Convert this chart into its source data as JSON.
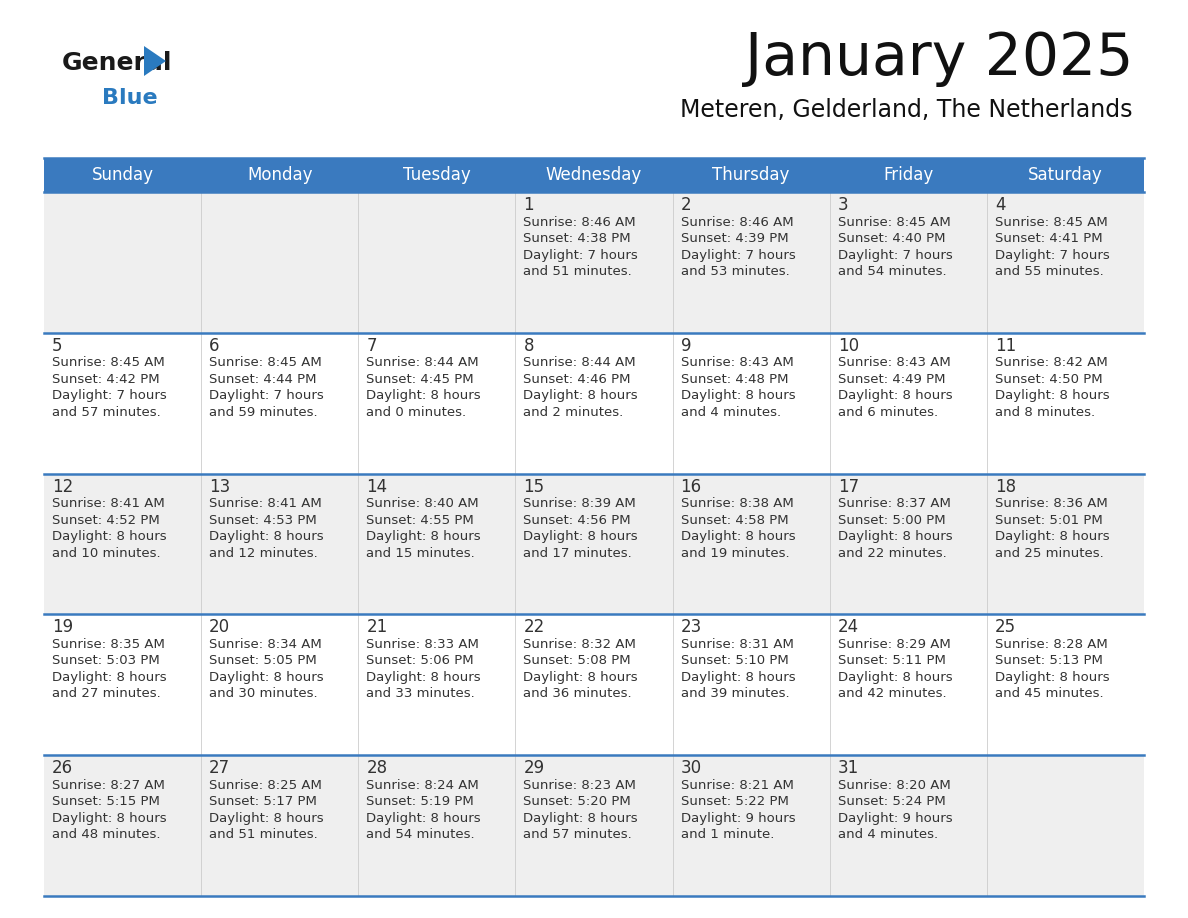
{
  "title": "January 2025",
  "subtitle": "Meteren, Gelderland, The Netherlands",
  "header_bg_color": "#3a7abf",
  "header_text_color": "#ffffff",
  "cell_bg_odd": "#efefef",
  "cell_bg_even": "#ffffff",
  "row_separator_color": "#3a7abf",
  "text_color": "#333333",
  "days_of_week": [
    "Sunday",
    "Monday",
    "Tuesday",
    "Wednesday",
    "Thursday",
    "Friday",
    "Saturday"
  ],
  "calendar": [
    [
      {
        "day": "",
        "sunrise": "",
        "sunset": "",
        "daylight_h": "",
        "daylight_m": "",
        "singular": false
      },
      {
        "day": "",
        "sunrise": "",
        "sunset": "",
        "daylight_h": "",
        "daylight_m": "",
        "singular": false
      },
      {
        "day": "",
        "sunrise": "",
        "sunset": "",
        "daylight_h": "",
        "daylight_m": "",
        "singular": false
      },
      {
        "day": "1",
        "sunrise": "8:46 AM",
        "sunset": "4:38 PM",
        "daylight_h": "7",
        "daylight_m": "51",
        "singular": false
      },
      {
        "day": "2",
        "sunrise": "8:46 AM",
        "sunset": "4:39 PM",
        "daylight_h": "7",
        "daylight_m": "53",
        "singular": false
      },
      {
        "day": "3",
        "sunrise": "8:45 AM",
        "sunset": "4:40 PM",
        "daylight_h": "7",
        "daylight_m": "54",
        "singular": false
      },
      {
        "day": "4",
        "sunrise": "8:45 AM",
        "sunset": "4:41 PM",
        "daylight_h": "7",
        "daylight_m": "55",
        "singular": false
      }
    ],
    [
      {
        "day": "5",
        "sunrise": "8:45 AM",
        "sunset": "4:42 PM",
        "daylight_h": "7",
        "daylight_m": "57",
        "singular": false
      },
      {
        "day": "6",
        "sunrise": "8:45 AM",
        "sunset": "4:44 PM",
        "daylight_h": "7",
        "daylight_m": "59",
        "singular": false
      },
      {
        "day": "7",
        "sunrise": "8:44 AM",
        "sunset": "4:45 PM",
        "daylight_h": "8",
        "daylight_m": "0",
        "singular": false
      },
      {
        "day": "8",
        "sunrise": "8:44 AM",
        "sunset": "4:46 PM",
        "daylight_h": "8",
        "daylight_m": "2",
        "singular": false
      },
      {
        "day": "9",
        "sunrise": "8:43 AM",
        "sunset": "4:48 PM",
        "daylight_h": "8",
        "daylight_m": "4",
        "singular": false
      },
      {
        "day": "10",
        "sunrise": "8:43 AM",
        "sunset": "4:49 PM",
        "daylight_h": "8",
        "daylight_m": "6",
        "singular": false
      },
      {
        "day": "11",
        "sunrise": "8:42 AM",
        "sunset": "4:50 PM",
        "daylight_h": "8",
        "daylight_m": "8",
        "singular": false
      }
    ],
    [
      {
        "day": "12",
        "sunrise": "8:41 AM",
        "sunset": "4:52 PM",
        "daylight_h": "8",
        "daylight_m": "10",
        "singular": false
      },
      {
        "day": "13",
        "sunrise": "8:41 AM",
        "sunset": "4:53 PM",
        "daylight_h": "8",
        "daylight_m": "12",
        "singular": false
      },
      {
        "day": "14",
        "sunrise": "8:40 AM",
        "sunset": "4:55 PM",
        "daylight_h": "8",
        "daylight_m": "15",
        "singular": false
      },
      {
        "day": "15",
        "sunrise": "8:39 AM",
        "sunset": "4:56 PM",
        "daylight_h": "8",
        "daylight_m": "17",
        "singular": false
      },
      {
        "day": "16",
        "sunrise": "8:38 AM",
        "sunset": "4:58 PM",
        "daylight_h": "8",
        "daylight_m": "19",
        "singular": false
      },
      {
        "day": "17",
        "sunrise": "8:37 AM",
        "sunset": "5:00 PM",
        "daylight_h": "8",
        "daylight_m": "22",
        "singular": false
      },
      {
        "day": "18",
        "sunrise": "8:36 AM",
        "sunset": "5:01 PM",
        "daylight_h": "8",
        "daylight_m": "25",
        "singular": false
      }
    ],
    [
      {
        "day": "19",
        "sunrise": "8:35 AM",
        "sunset": "5:03 PM",
        "daylight_h": "8",
        "daylight_m": "27",
        "singular": false
      },
      {
        "day": "20",
        "sunrise": "8:34 AM",
        "sunset": "5:05 PM",
        "daylight_h": "8",
        "daylight_m": "30",
        "singular": false
      },
      {
        "day": "21",
        "sunrise": "8:33 AM",
        "sunset": "5:06 PM",
        "daylight_h": "8",
        "daylight_m": "33",
        "singular": false
      },
      {
        "day": "22",
        "sunrise": "8:32 AM",
        "sunset": "5:08 PM",
        "daylight_h": "8",
        "daylight_m": "36",
        "singular": false
      },
      {
        "day": "23",
        "sunrise": "8:31 AM",
        "sunset": "5:10 PM",
        "daylight_h": "8",
        "daylight_m": "39",
        "singular": false
      },
      {
        "day": "24",
        "sunrise": "8:29 AM",
        "sunset": "5:11 PM",
        "daylight_h": "8",
        "daylight_m": "42",
        "singular": false
      },
      {
        "day": "25",
        "sunrise": "8:28 AM",
        "sunset": "5:13 PM",
        "daylight_h": "8",
        "daylight_m": "45",
        "singular": false
      }
    ],
    [
      {
        "day": "26",
        "sunrise": "8:27 AM",
        "sunset": "5:15 PM",
        "daylight_h": "8",
        "daylight_m": "48",
        "singular": false
      },
      {
        "day": "27",
        "sunrise": "8:25 AM",
        "sunset": "5:17 PM",
        "daylight_h": "8",
        "daylight_m": "51",
        "singular": false
      },
      {
        "day": "28",
        "sunrise": "8:24 AM",
        "sunset": "5:19 PM",
        "daylight_h": "8",
        "daylight_m": "54",
        "singular": false
      },
      {
        "day": "29",
        "sunrise": "8:23 AM",
        "sunset": "5:20 PM",
        "daylight_h": "8",
        "daylight_m": "57",
        "singular": false
      },
      {
        "day": "30",
        "sunrise": "8:21 AM",
        "sunset": "5:22 PM",
        "daylight_h": "9",
        "daylight_m": "1",
        "singular": true
      },
      {
        "day": "31",
        "sunrise": "8:20 AM",
        "sunset": "5:24 PM",
        "daylight_h": "9",
        "daylight_m": "4",
        "singular": false
      },
      {
        "day": "",
        "sunrise": "",
        "sunset": "",
        "daylight_h": "",
        "daylight_m": "",
        "singular": false
      }
    ]
  ]
}
